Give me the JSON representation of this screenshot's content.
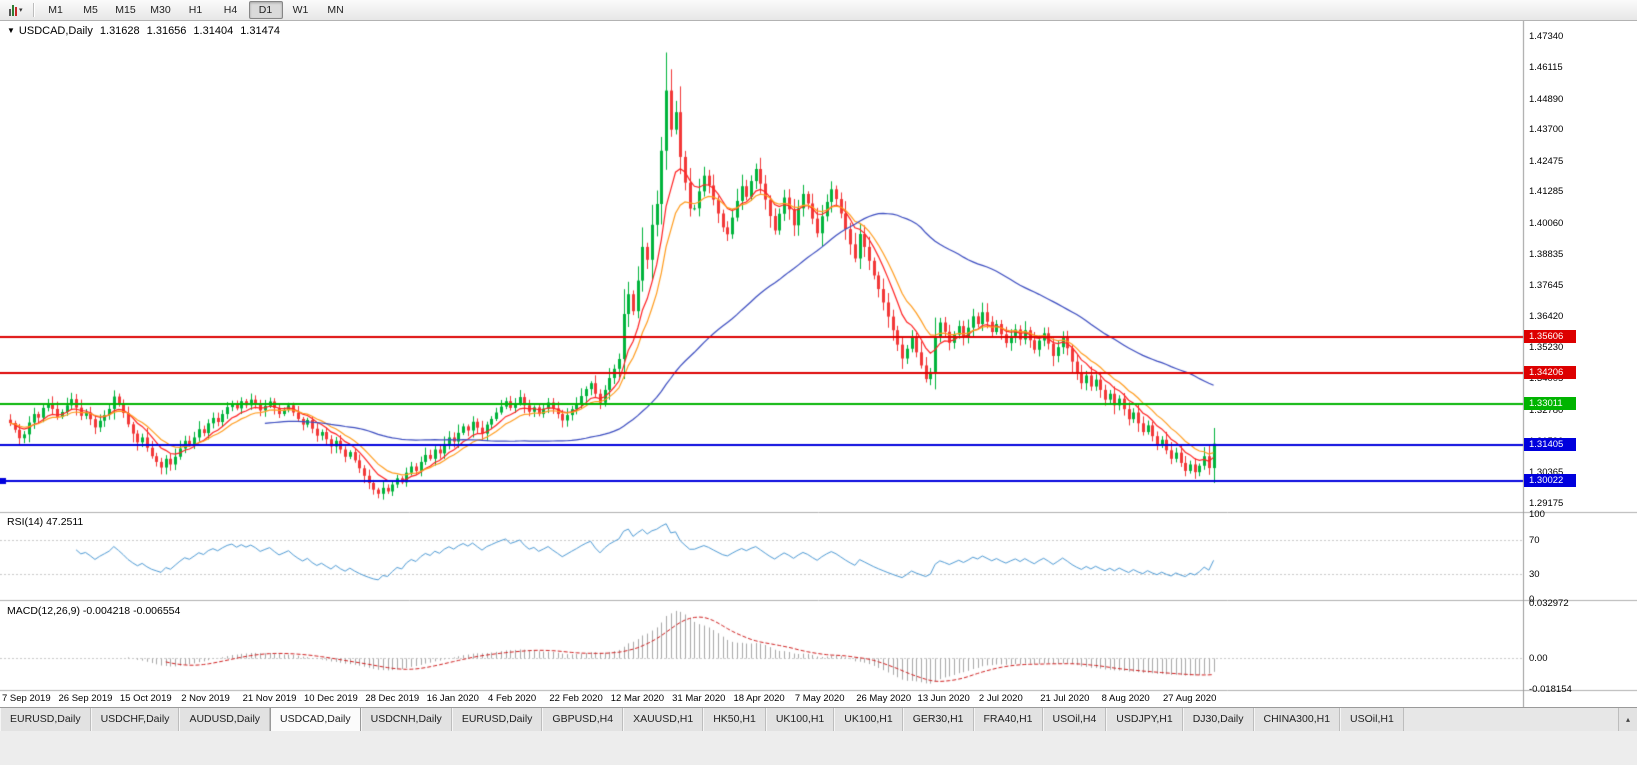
{
  "toolbar": {
    "chart_type_dropdown": "▾",
    "timeframes": [
      "M1",
      "M5",
      "M15",
      "M30",
      "H1",
      "H4",
      "D1",
      "W1",
      "MN"
    ],
    "active_timeframe": "D1"
  },
  "quote": {
    "dropdown_icon": "▼",
    "symbol_period": "USDCAD,Daily",
    "open": "1.31628",
    "high": "1.31656",
    "low": "1.31404",
    "close": "1.31474"
  },
  "price_axis": {
    "ticks": [
      "1.47340",
      "1.46115",
      "1.44890",
      "1.43700",
      "1.42475",
      "1.41285",
      "1.40060",
      "1.38835",
      "1.37645",
      "1.36420",
      "1.35230",
      "1.34005",
      "1.32780",
      "1.31590",
      "1.30365",
      "1.29175"
    ]
  },
  "hlines": [
    {
      "label": "1.35606",
      "color": "#dd0000",
      "width": 2
    },
    {
      "label": "1.34206",
      "color": "#dd0000",
      "width": 2
    },
    {
      "label": "1.33011",
      "color": "#00b400",
      "width": 2
    },
    {
      "label": "1.31405",
      "color": "#0000dd",
      "width": 2
    },
    {
      "label": "1.30022",
      "color": "#0000dd",
      "width": 2,
      "handle": true
    }
  ],
  "indicators": {
    "rsi": {
      "label": "RSI(14) 47.2511",
      "levels": [
        "100",
        "70",
        "30",
        "0"
      ],
      "dashed_levels": [
        70,
        30
      ],
      "color": "#4f9bd5"
    },
    "macd": {
      "label": "MACD(12,26,9) -0.004218 -0.006554",
      "axis": [
        "0.032972",
        "0.00",
        "-0.018154"
      ],
      "vmax": 0.032972,
      "vmin": -0.018154,
      "histogram_color": "#a8a8a8",
      "signal_color": "#d02020"
    }
  },
  "date_axis": {
    "labels": [
      "7 Sep 2019",
      "26 Sep 2019",
      "15 Oct 2019",
      "2 Nov 2019",
      "21 Nov 2019",
      "10 Dec 2019",
      "28 Dec 2019",
      "16 Jan 2020",
      "4 Feb 2020",
      "22 Feb 2020",
      "12 Mar 2020",
      "31 Mar 2020",
      "18 Apr 2020",
      "7 May 2020",
      "26 May 2020",
      "13 Jun 2020",
      "2 Jul 2020",
      "21 Jul 2020",
      "8 Aug 2020",
      "27 Aug 2020"
    ],
    "first_candle_index": 3,
    "candle_step": 13
  },
  "chart_data": {
    "type": "candlestick",
    "symbol": "USDCAD",
    "timeframe": "Daily",
    "ylim": [
      1.2885,
      1.4775
    ],
    "first_open": 1.324,
    "up_color": "#00b43c",
    "down_color": "#f23838",
    "closes": [
      1.3227,
      1.3201,
      1.3168,
      1.3183,
      1.3229,
      1.3262,
      1.3248,
      1.3286,
      1.3304,
      1.3282,
      1.3251,
      1.327,
      1.3296,
      1.332,
      1.3287,
      1.3255,
      1.3268,
      1.3242,
      1.321,
      1.3236,
      1.3258,
      1.3282,
      1.333,
      1.3301,
      1.3266,
      1.3222,
      1.3186,
      1.3152,
      1.3171,
      1.3131,
      1.3098,
      1.3076,
      1.3054,
      1.3088,
      1.3066,
      1.3096,
      1.3128,
      1.3158,
      1.3143,
      1.3171,
      1.3203,
      1.3188,
      1.3226,
      1.3247,
      1.3231,
      1.3262,
      1.3289,
      1.3305,
      1.3284,
      1.3312,
      1.3296,
      1.3318,
      1.3301,
      1.3276,
      1.3294,
      1.3311,
      1.3286,
      1.3262,
      1.3278,
      1.3296,
      1.3268,
      1.3243,
      1.3221,
      1.3239,
      1.3205,
      1.3178,
      1.3192,
      1.3164,
      1.3136,
      1.3158,
      1.3124,
      1.3096,
      1.3114,
      1.3082,
      1.3051,
      1.3022,
      1.2994,
      1.2968,
      1.2952,
      1.2975,
      1.2961,
      1.2988,
      1.3012,
      1.2996,
      1.3034,
      1.3058,
      1.3041,
      1.3076,
      1.3103,
      1.3088,
      1.3124,
      1.3109,
      1.3146,
      1.3171,
      1.3155,
      1.3189,
      1.3214,
      1.3198,
      1.3232,
      1.3209,
      1.3186,
      1.3221,
      1.3243,
      1.3268,
      1.3291,
      1.3312,
      1.3286,
      1.3304,
      1.3328,
      1.3296,
      1.3271,
      1.3288,
      1.3262,
      1.3283,
      1.3307,
      1.3284,
      1.3262,
      1.3237,
      1.3258,
      1.3281,
      1.3304,
      1.3332,
      1.3359,
      1.3382,
      1.3341,
      1.3306,
      1.3356,
      1.3402,
      1.3438,
      1.3476,
      1.3651,
      1.3728,
      1.3662,
      1.3781,
      1.3912,
      1.3862,
      1.3998,
      1.4079,
      1.4286,
      1.452,
      1.4368,
      1.4436,
      1.4262,
      1.4162,
      1.4061,
      1.4062,
      1.4128,
      1.4189,
      1.4151,
      1.4096,
      1.4042,
      1.3988,
      1.3961,
      1.4026,
      1.4091,
      1.4148,
      1.4107,
      1.4168,
      1.4215,
      1.4158,
      1.4096,
      1.4032,
      1.3976,
      1.4041,
      1.4104,
      1.4058,
      1.3996,
      1.4062,
      1.4118,
      1.4081,
      1.4022,
      1.3965,
      1.4031,
      1.4087,
      1.4136,
      1.4098,
      1.4042,
      1.3981,
      1.3922,
      1.3867,
      1.3962,
      1.3912,
      1.3858,
      1.3801,
      1.3748,
      1.3696,
      1.3641,
      1.3588,
      1.3532,
      1.3478,
      1.3516,
      1.3561,
      1.3502,
      1.3451,
      1.3398,
      1.3426,
      1.3561,
      1.3618,
      1.3582,
      1.3539,
      1.3571,
      1.3604,
      1.3562,
      1.3598,
      1.3642,
      1.3612,
      1.3658,
      1.3621,
      1.3581,
      1.3612,
      1.3572,
      1.3538,
      1.3566,
      1.3591,
      1.3552,
      1.3588,
      1.3549,
      1.3512,
      1.3548,
      1.3576,
      1.3536,
      1.3488,
      1.3522,
      1.3561,
      1.3518,
      1.3466,
      1.3421,
      1.3382,
      1.3412,
      1.3369,
      1.3396,
      1.3356,
      1.3318,
      1.3341,
      1.3296,
      1.3322,
      1.3281,
      1.3242,
      1.3268,
      1.3226,
      1.3192,
      1.3218,
      1.3176,
      1.3141,
      1.3162,
      1.3121,
      1.3088,
      1.3112,
      1.3072,
      1.3041,
      1.3066,
      1.3036,
      1.3061,
      1.3098,
      1.3052,
      1.3147
    ],
    "high_overrides": {
      "139": 1.4668
    },
    "moving_averages": [
      {
        "type": "ema",
        "period": 8,
        "color": "#ff2222"
      },
      {
        "type": "ema",
        "period": 13,
        "color": "#ff9c1e"
      },
      {
        "type": "sma",
        "period": 55,
        "color": "#3b4cc0"
      }
    ]
  },
  "tabs": {
    "active_index": 3,
    "scroll_button": "▴",
    "items": [
      "EURUSD,Daily",
      "USDCHF,Daily",
      "AUDUSD,Daily",
      "USDCAD,Daily",
      "USDCNH,Daily",
      "EURUSD,Daily",
      "GBPUSD,H4",
      "XAUUSD,H1",
      "HK50,H1",
      "UK100,H1",
      "UK100,H1",
      "GER30,H1",
      "FRA40,H1",
      "USOil,H4",
      "USDJPY,H1",
      "DJ30,Daily",
      "CHINA300,H1",
      "USOil,H1"
    ]
  }
}
